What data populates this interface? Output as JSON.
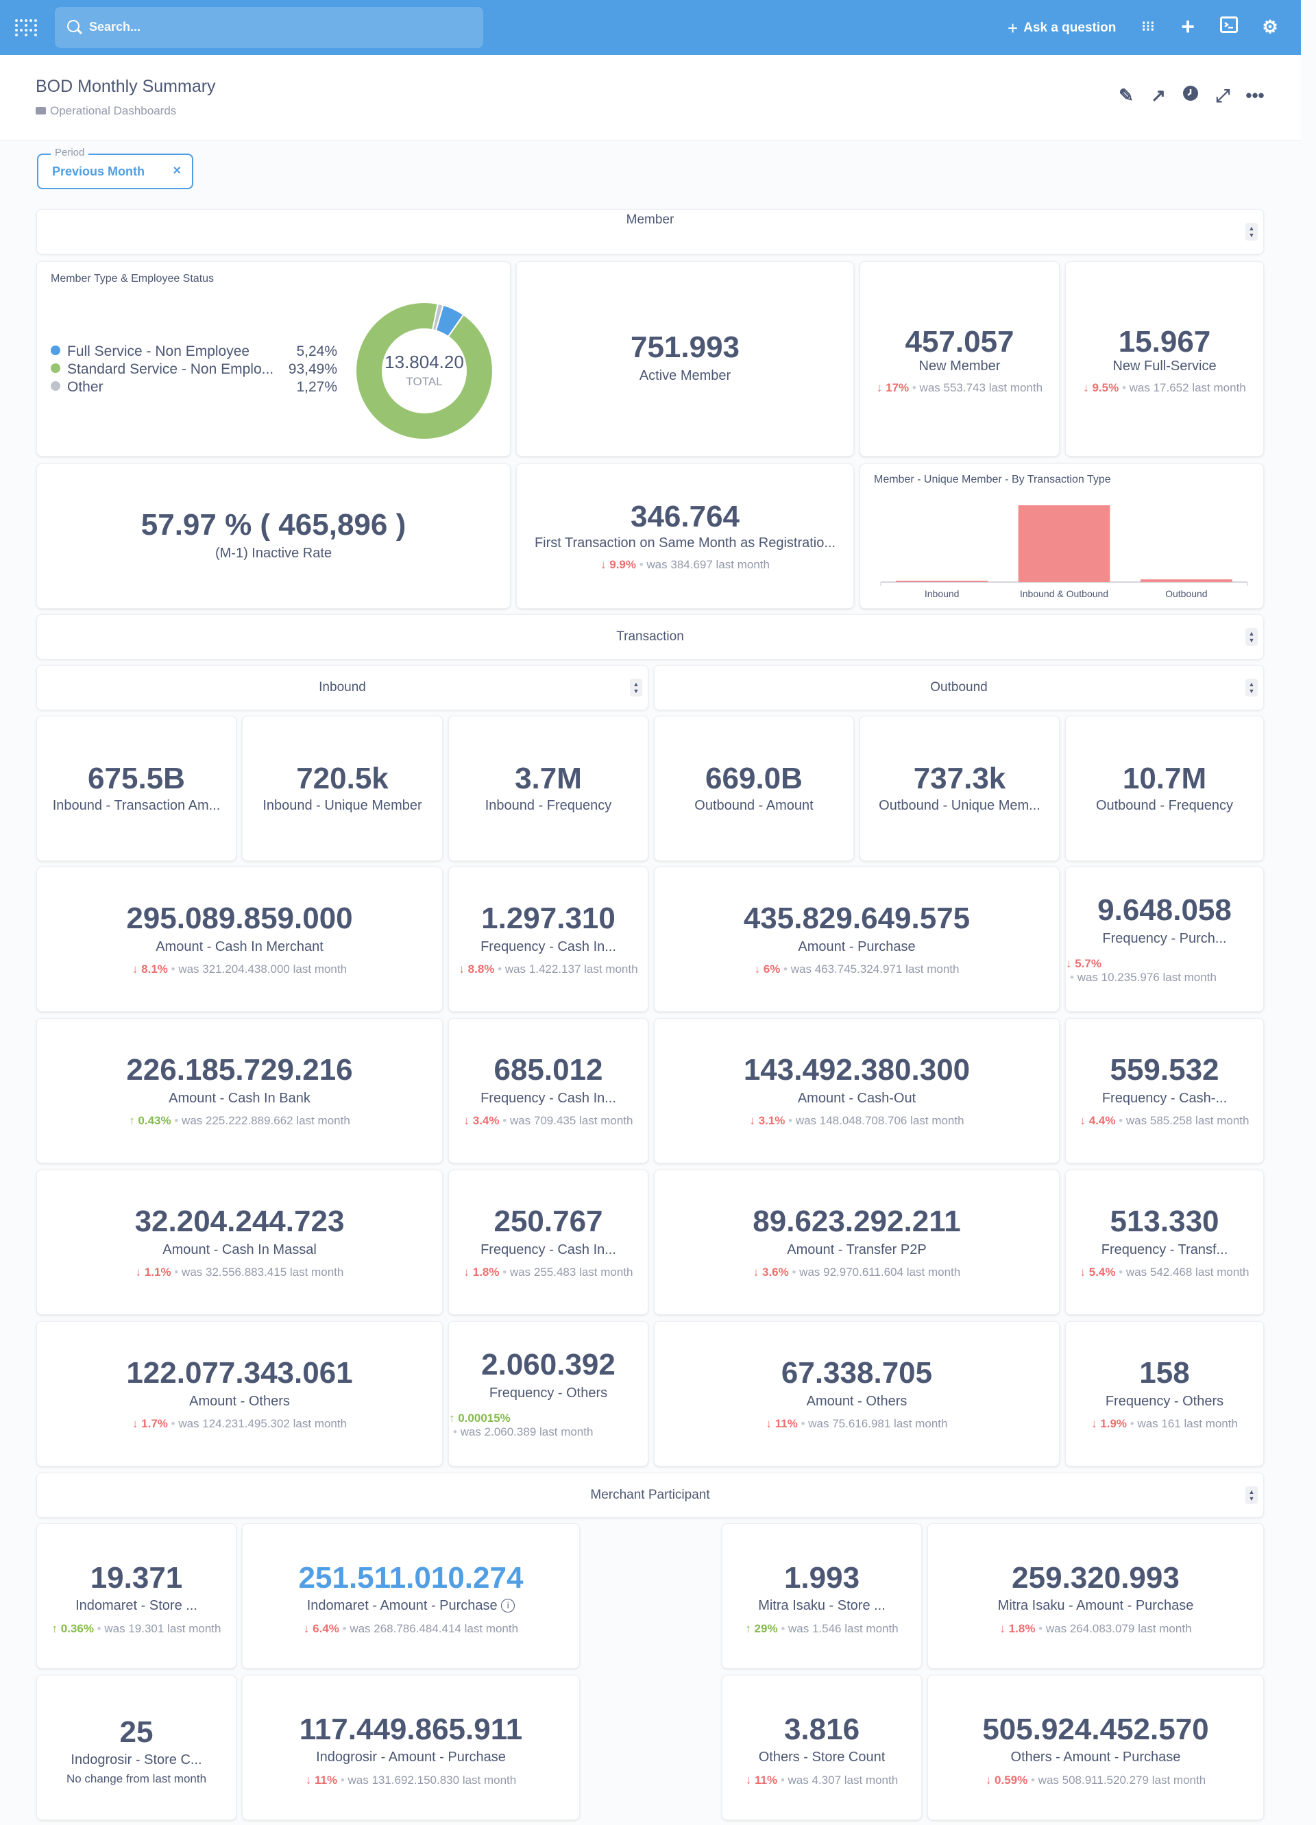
{
  "nav": {
    "search_placeholder": "Search...",
    "ask_label": "Ask a question",
    "icons": [
      "apps-icon",
      "plus-icon",
      "terminal-icon",
      "gear-icon"
    ]
  },
  "header": {
    "title": "BOD Monthly Summary",
    "breadcrumb": "Operational Dashboards"
  },
  "filter": {
    "label": "Period",
    "value": "Previous Month",
    "clear": "×"
  },
  "sections": {
    "member": "Member",
    "transaction": "Transaction",
    "inbound": "Inbound",
    "outbound": "Outbound",
    "merchant": "Merchant Participant"
  },
  "member_type": {
    "title": "Member Type & Employee Status",
    "total_value": "13.804.20",
    "total_label": "TOTAL",
    "legend": [
      {
        "label": "Full Service - Non Employee",
        "pct": "5,24%",
        "color": "#509ee3"
      },
      {
        "label": "Standard Service - Non Emplo...",
        "pct": "93,49%",
        "color": "#98c472"
      },
      {
        "label": "Other",
        "pct": "1,27%",
        "color": "#bfc3cb"
      }
    ]
  },
  "chart_data": {
    "type": "bar",
    "title": "Member - Unique Member - By Transaction Type",
    "categories": [
      "Inbound",
      "Inbound & Outbound",
      "Outbound"
    ],
    "values": [
      0.015,
      1.0,
      0.035
    ],
    "color": "#f28b8b"
  },
  "cards": {
    "active_member": {
      "value": "751.993",
      "label": "Active Member"
    },
    "new_member": {
      "value": "457.057",
      "label": "New Member",
      "pct": "17%",
      "was": "was 553.743",
      "suffix": "last month"
    },
    "new_full_service": {
      "value": "15.967",
      "label": "New Full-Service",
      "pct": "9.5%",
      "was": "was 17.652",
      "suffix": "last month"
    },
    "inactive_rate": {
      "value": "57.97 % ( 465,896 )",
      "label": "(M-1) Inactive Rate"
    },
    "first_trx": {
      "value": "346.764",
      "label": "First Transaction on Same Month as Registratio...",
      "pct": "9.9%",
      "was": "was 384.697",
      "suffix": "last month"
    },
    "in_amount": {
      "value": "675.5B",
      "label": "Inbound - Transaction Am..."
    },
    "in_unique": {
      "value": "720.5k",
      "label": "Inbound - Unique Member"
    },
    "in_freq": {
      "value": "3.7M",
      "label": "Inbound - Frequency"
    },
    "out_amount": {
      "value": "669.0B",
      "label": "Outbound - Amount"
    },
    "out_unique": {
      "value": "737.3k",
      "label": "Outbound - Unique Mem..."
    },
    "out_freq": {
      "value": "10.7M",
      "label": "Outbound - Frequency"
    },
    "cash_in_merchant": {
      "value": "295.089.859.000",
      "label": "Amount - Cash In Merchant",
      "pct": "8.1%",
      "was": "was 321.204.438.000",
      "suffix": "last month"
    },
    "freq_cash_in_1": {
      "value": "1.297.310",
      "label": "Frequency - Cash In...",
      "pct": "8.8%",
      "was": "was 1.422.137",
      "suffix": "last month"
    },
    "amount_purchase": {
      "value": "435.829.649.575",
      "label": "Amount - Purchase",
      "pct": "6%",
      "was": "was 463.745.324.971",
      "suffix": "last month"
    },
    "freq_purchase": {
      "value": "9.648.058",
      "label": "Frequency - Purch...",
      "pct": "5.7%",
      "was": "was 10.235.976",
      "suffix": "last month"
    },
    "cash_in_bank": {
      "value": "226.185.729.216",
      "label": "Amount - Cash In Bank",
      "pct": "0.43%",
      "was": "was 225.222.889.662",
      "suffix": "last month"
    },
    "freq_cash_in_2": {
      "value": "685.012",
      "label": "Frequency - Cash In...",
      "pct": "3.4%",
      "was": "was 709.435",
      "suffix": "last month"
    },
    "cash_out": {
      "value": "143.492.380.300",
      "label": "Amount - Cash-Out",
      "pct": "3.1%",
      "was": "was 148.048.708.706",
      "suffix": "last month"
    },
    "freq_cash_out": {
      "value": "559.532",
      "label": "Frequency - Cash-...",
      "pct": "4.4%",
      "was": "was 585.258",
      "suffix": "last month"
    },
    "cash_in_massal": {
      "value": "32.204.244.723",
      "label": "Amount - Cash In Massal",
      "pct": "1.1%",
      "was": "was 32.556.883.415",
      "suffix": "last month"
    },
    "freq_cash_in_3": {
      "value": "250.767",
      "label": "Frequency - Cash In...",
      "pct": "1.8%",
      "was": "was 255.483",
      "suffix": "last month"
    },
    "transfer_p2p": {
      "value": "89.623.292.211",
      "label": "Amount - Transfer P2P",
      "pct": "3.6%",
      "was": "was 92.970.611.604",
      "suffix": "last month"
    },
    "freq_transfer": {
      "value": "513.330",
      "label": "Frequency - Transf...",
      "pct": "5.4%",
      "was": "was 542.468",
      "suffix": "last month"
    },
    "amount_others_in": {
      "value": "122.077.343.061",
      "label": "Amount - Others",
      "pct": "1.7%",
      "was": "was 124.231.495.302",
      "suffix": "last month"
    },
    "freq_others_in": {
      "value": "2.060.392",
      "label": "Frequency - Others",
      "pct": "0.00015%",
      "was": "was 2.060.389",
      "suffix": "last month"
    },
    "amount_others_out": {
      "value": "67.338.705",
      "label": "Amount - Others",
      "pct": "11%",
      "was": "was 75.616.981",
      "suffix": "last month"
    },
    "freq_others_out": {
      "value": "158",
      "label": "Frequency - Others",
      "pct": "1.9%",
      "was": "was 161",
      "suffix": "last month"
    },
    "indomaret_store": {
      "value": "19.371",
      "label": "Indomaret - Store ...",
      "pct": "0.36%",
      "was": "was 19.301",
      "suffix": "last month"
    },
    "indomaret_amount": {
      "value": "251.511.010.274",
      "label": "Indomaret - Amount - Purchase",
      "pct": "6.4%",
      "was": "was 268.786.484.414",
      "suffix": "last month"
    },
    "mitra_store": {
      "value": "1.993",
      "label": "Mitra Isaku - Store ...",
      "pct": "29%",
      "was": "was 1.546",
      "suffix": "last month"
    },
    "mitra_amount": {
      "value": "259.320.993",
      "label": "Mitra Isaku - Amount - Purchase",
      "pct": "1.8%",
      "was": "was 264.083.079",
      "suffix": "last month"
    },
    "indogrosir_store": {
      "value": "25",
      "label": "Indogrosir - Store C...",
      "note": "No change from last month"
    },
    "indogrosir_amount": {
      "value": "117.449.865.911",
      "label": "Indogrosir - Amount - Purchase",
      "pct": "11%",
      "was": "was 131.692.150.830",
      "suffix": "last month"
    },
    "others_store": {
      "value": "3.816",
      "label": "Others - Store Count",
      "pct": "11%",
      "was": "was 4.307",
      "suffix": "last month"
    },
    "others_amount": {
      "value": "505.924.452.570",
      "label": "Others - Amount - Purchase",
      "pct": "0.59%",
      "was": "was 508.911.520.279",
      "suffix": "last month"
    }
  }
}
